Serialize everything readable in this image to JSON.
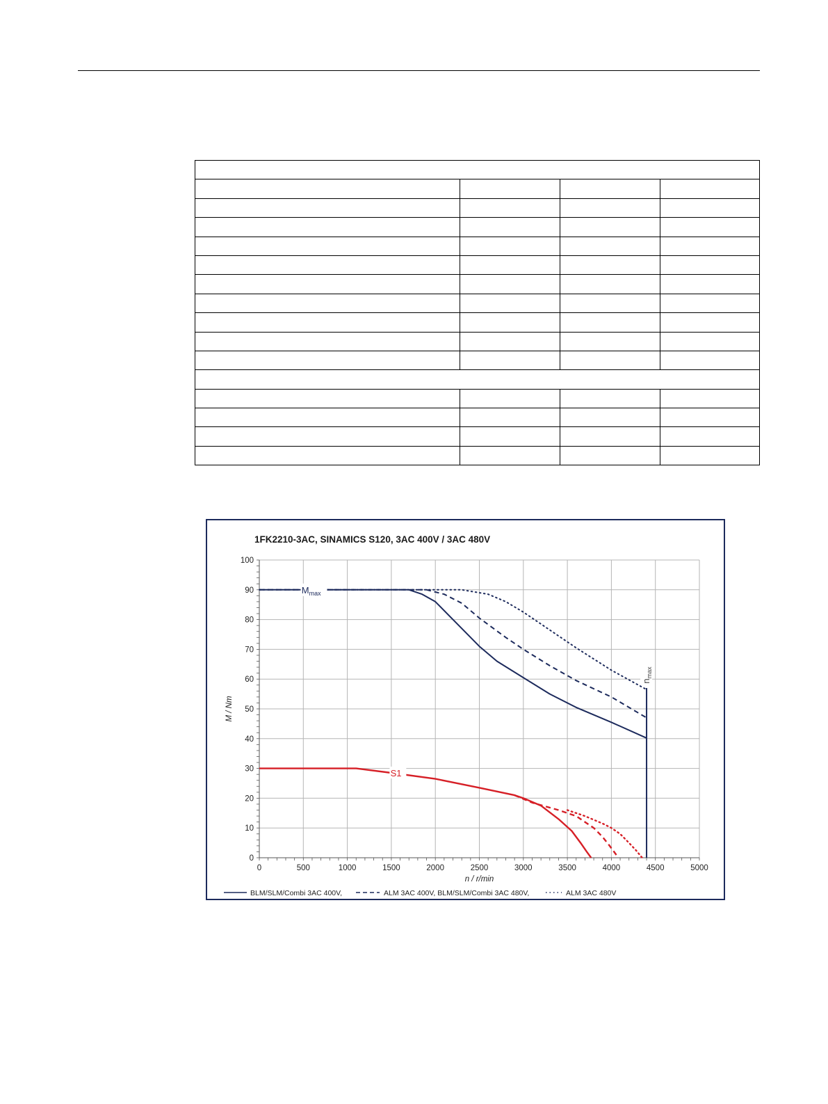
{
  "table": {
    "rows": [
      {
        "kind": "full"
      },
      {
        "kind": "split"
      },
      {
        "kind": "split"
      },
      {
        "kind": "split"
      },
      {
        "kind": "split"
      },
      {
        "kind": "split"
      },
      {
        "kind": "split"
      },
      {
        "kind": "split"
      },
      {
        "kind": "split"
      },
      {
        "kind": "split"
      },
      {
        "kind": "split"
      },
      {
        "kind": "full"
      },
      {
        "kind": "split"
      },
      {
        "kind": "split"
      },
      {
        "kind": "split"
      },
      {
        "kind": "split"
      }
    ]
  },
  "chart_data": {
    "type": "line",
    "title": "1FK2210-3AC,  SINAMICS S120,  3AC 400V / 3AC 480V",
    "xlabel": "n / r/min",
    "ylabel": "M / Nm",
    "xlim": [
      0,
      5000
    ],
    "ylim": [
      0,
      100
    ],
    "x_ticks": [
      "0",
      "500",
      "1000",
      "1500",
      "2000",
      "2500",
      "3000",
      "3500",
      "4000",
      "4500",
      "5000"
    ],
    "y_ticks": [
      "0",
      "10",
      "20",
      "30",
      "40",
      "50",
      "60",
      "70",
      "80",
      "90",
      "100"
    ],
    "grid": true,
    "legend_position": "bottom",
    "legend": [
      {
        "label": "BLM/SLM/Combi 3AC 400V,",
        "style": "solid"
      },
      {
        "label": "ALM 3AC 400V, BLM/SLM/Combi 3AC 480V,",
        "style": "dashed"
      },
      {
        "label": "ALM 3AC 480V",
        "style": "dotted"
      }
    ],
    "annotations": {
      "mmax_main": "M",
      "mmax_sub": "max",
      "s1": "S1",
      "nmax_main": "n",
      "nmax_sub": "max",
      "nmax_speed": 4400
    },
    "colors": {
      "mmax": "#1c2a5c",
      "s1": "#d61f26",
      "grid": "#b5b5b5",
      "frame": "#1c2a5c"
    },
    "series": [
      {
        "group": "Mmax",
        "style": "solid",
        "x": [
          0,
          1700,
          1850,
          2000,
          2200,
          2500,
          2700,
          3000,
          3300,
          3600,
          4000,
          4400
        ],
        "y": [
          90,
          90,
          88.5,
          86,
          80,
          71,
          66,
          60.5,
          55,
          50.5,
          45.5,
          40.2
        ]
      },
      {
        "group": "Mmax",
        "style": "dashed",
        "x": [
          0,
          1900,
          2100,
          2300,
          2500,
          2800,
          3000,
          3300,
          3600,
          4000,
          4400
        ],
        "y": [
          90,
          90,
          88.5,
          85.5,
          80.5,
          74,
          70,
          64.5,
          59.5,
          54,
          47
        ]
      },
      {
        "group": "Mmax",
        "style": "dotted",
        "x": [
          0,
          2300,
          2600,
          2800,
          3000,
          3300,
          3600,
          4000,
          4400
        ],
        "y": [
          90,
          90,
          88.5,
          86,
          82.5,
          76.5,
          70.5,
          63,
          56.5
        ]
      },
      {
        "group": "S1",
        "style": "solid",
        "x": [
          0,
          1100,
          1500,
          2000,
          2500,
          2900,
          3000,
          3200,
          3400,
          3550,
          3650,
          3720,
          3770
        ],
        "y": [
          30,
          30,
          28.5,
          26.5,
          23.5,
          21,
          20,
          17.5,
          13,
          9,
          5,
          2,
          0
        ]
      },
      {
        "group": "S1",
        "style": "dashed",
        "x": [
          2900,
          3100,
          3400,
          3600,
          3800,
          3900,
          3980,
          4030,
          4080
        ],
        "y": [
          21,
          18.5,
          16,
          14,
          10,
          7,
          4,
          2,
          0
        ]
      },
      {
        "group": "S1",
        "style": "dotted",
        "x": [
          3500,
          3700,
          3900,
          4000,
          4100,
          4200,
          4280,
          4350
        ],
        "y": [
          16,
          14,
          11.5,
          10,
          8,
          5,
          2.5,
          0
        ]
      }
    ]
  }
}
